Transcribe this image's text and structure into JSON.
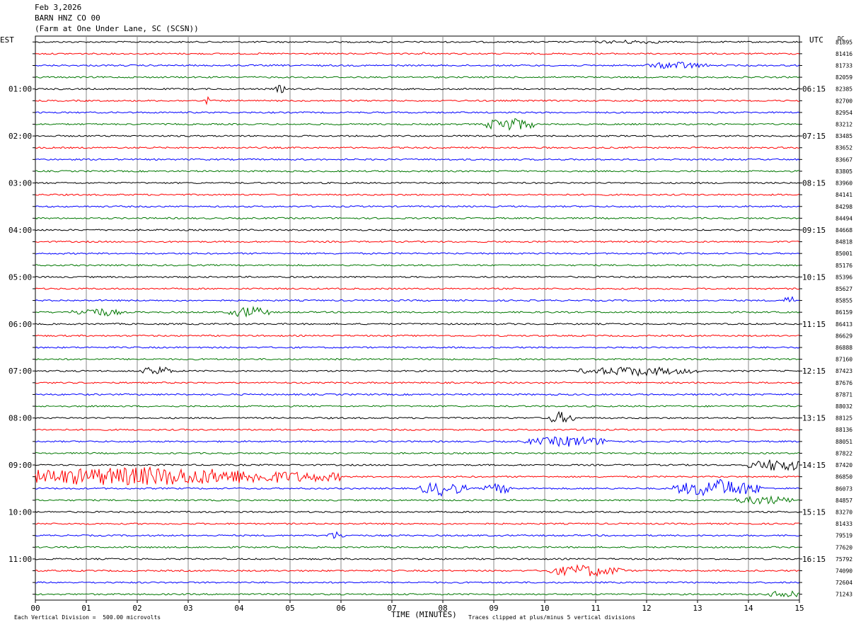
{
  "header": {
    "date": "Feb 3,2026",
    "station": "BARN HNZ CO 00",
    "location": "(Farm at One Under Lane, SC (SCSN))"
  },
  "left_axis_label": "EST",
  "right_axis_label": "UTC",
  "dc_label": "DC",
  "footer": {
    "xlabel": "TIME (MINUTES)",
    "scale_note": "Each Vertical Division =  500.00 microvolts",
    "clip_note": "Traces clipped at plus/minus 5 vertical divisions"
  },
  "chart_data": {
    "type": "line",
    "x_ticks": [
      "00",
      "01",
      "02",
      "03",
      "04",
      "05",
      "06",
      "07",
      "08",
      "09",
      "10",
      "11",
      "12",
      "13",
      "14",
      "15"
    ],
    "xlim": [
      0,
      15
    ],
    "grid": true,
    "trace_colors": [
      "#000000",
      "#ff0000",
      "#0000ff",
      "#007700"
    ],
    "est_labels": [
      "01:00",
      "02:00",
      "03:00",
      "04:00",
      "05:00",
      "06:00",
      "07:00",
      "08:00",
      "09:00",
      "10:00",
      "11:00"
    ],
    "utc_labels": [
      "06:15",
      "07:15",
      "08:15",
      "09:15",
      "10:15",
      "11:15",
      "12:15",
      "13:15",
      "14:15",
      "15:15",
      "16:15"
    ],
    "first_hour_label_row": 4,
    "dc_values": [
      "81895",
      "81416",
      "81733",
      "82059",
      "82385",
      "82700",
      "82954",
      "83212",
      "83485",
      "83652",
      "83667",
      "83805",
      "83960",
      "84141",
      "84298",
      "84494",
      "84668",
      "84818",
      "85001",
      "85176",
      "85396",
      "85627",
      "85855",
      "86159",
      "86413",
      "86629",
      "86888",
      "87160",
      "87423",
      "87676",
      "87871",
      "88032",
      "88125",
      "88136",
      "88051",
      "87822",
      "87420",
      "86850",
      "86073",
      "84857",
      "83270",
      "81433",
      "79519",
      "77620",
      "75792",
      "74090",
      "72604",
      "71243"
    ],
    "events": [
      {
        "trace": 0,
        "minute": 11.7,
        "amp": 3,
        "dur": 0.8
      },
      {
        "trace": 1,
        "minute": 7.6,
        "amp": 5,
        "dur": 0.05
      },
      {
        "trace": 2,
        "minute": 12.6,
        "amp": 6,
        "dur": 0.6
      },
      {
        "trace": 4,
        "minute": 4.8,
        "amp": 7,
        "dur": 0.1
      },
      {
        "trace": 5,
        "minute": 3.4,
        "amp": 9,
        "dur": 0.05
      },
      {
        "trace": 7,
        "minute": 9.3,
        "amp": 11,
        "dur": 0.5
      },
      {
        "trace": 22,
        "minute": 14.8,
        "amp": 11,
        "dur": 0.1
      },
      {
        "trace": 23,
        "minute": 1.2,
        "amp": 7,
        "dur": 0.5
      },
      {
        "trace": 23,
        "minute": 4.2,
        "amp": 9,
        "dur": 0.4
      },
      {
        "trace": 28,
        "minute": 2.4,
        "amp": 8,
        "dur": 0.3
      },
      {
        "trace": 28,
        "minute": 11.8,
        "amp": 7,
        "dur": 1.2
      },
      {
        "trace": 32,
        "minute": 10.3,
        "amp": 9,
        "dur": 0.3
      },
      {
        "trace": 34,
        "minute": 10.5,
        "amp": 8,
        "dur": 0.9
      },
      {
        "trace": 36,
        "minute": 14.6,
        "amp": 10,
        "dur": 0.6
      },
      {
        "trace": 37,
        "minute": 2.0,
        "amp": 14,
        "dur": 4.0
      },
      {
        "trace": 38,
        "minute": 8.0,
        "amp": 11,
        "dur": 0.5
      },
      {
        "trace": 38,
        "minute": 13.4,
        "amp": 14,
        "dur": 0.9
      },
      {
        "trace": 38,
        "minute": 9.1,
        "amp": 8,
        "dur": 0.3
      },
      {
        "trace": 39,
        "minute": 14.3,
        "amp": 7,
        "dur": 0.6
      },
      {
        "trace": 42,
        "minute": 5.9,
        "amp": 6,
        "dur": 0.2
      },
      {
        "trace": 45,
        "minute": 10.8,
        "amp": 9,
        "dur": 0.8
      },
      {
        "trace": 47,
        "minute": 14.8,
        "amp": 7,
        "dur": 0.4
      }
    ]
  }
}
